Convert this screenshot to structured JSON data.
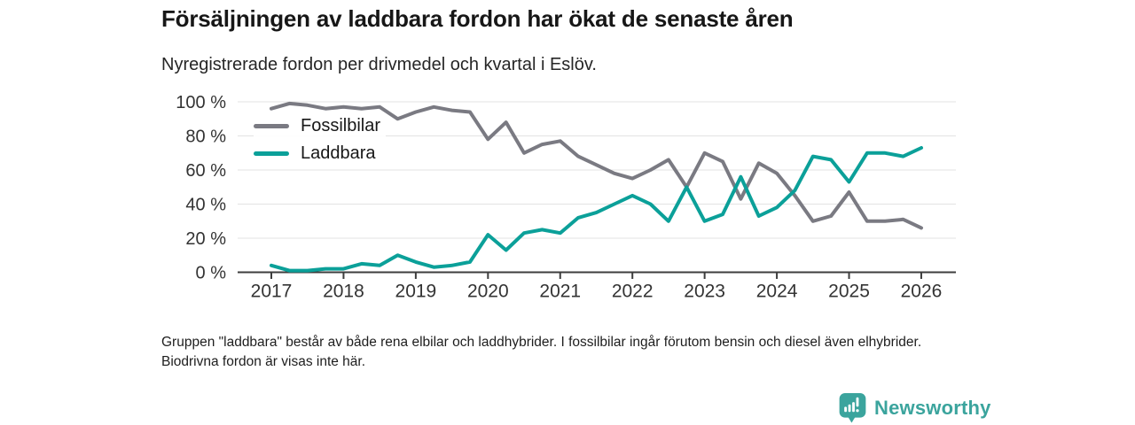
{
  "title": "Försäljningen av laddbara fordon har ökat de senaste åren",
  "subtitle": "Nyregistrerade fordon per drivmedel och kvartal i Eslöv.",
  "footnote": "Gruppen \"laddbara\" består av både rena elbilar och laddhybrider. I fossilbilar ingår förutom bensin och diesel även elhybrider. Biodrivna fordon är visas inte här.",
  "branding": {
    "name": "Newsworthy",
    "logo_icon": "bar-chart-bubble-icon",
    "color": "#3ba49d"
  },
  "chart_data": {
    "type": "line",
    "title": "Nyregistrerade fordon per drivmedel och kvartal i Eslöv",
    "x_unit": "quarter",
    "x": [
      "2017 Q1",
      "2017 Q2",
      "2017 Q3",
      "2017 Q4",
      "2018 Q1",
      "2018 Q2",
      "2018 Q3",
      "2018 Q4",
      "2019 Q1",
      "2019 Q2",
      "2019 Q3",
      "2019 Q4",
      "2020 Q1",
      "2020 Q2",
      "2020 Q3",
      "2020 Q4",
      "2021 Q1",
      "2021 Q2",
      "2021 Q3",
      "2021 Q4",
      "2022 Q1",
      "2022 Q2",
      "2022 Q3",
      "2022 Q4",
      "2023 Q1",
      "2023 Q2",
      "2023 Q3",
      "2023 Q4",
      "2024 Q1",
      "2024 Q2",
      "2024 Q3",
      "2024 Q4",
      "2025 Q1",
      "2025 Q2",
      "2025 Q3",
      "2025 Q4",
      "2026 Q1"
    ],
    "x_tick_labels": [
      "2017",
      "2018",
      "2019",
      "2020",
      "2021",
      "2022",
      "2023",
      "2024",
      "2025",
      "2026"
    ],
    "y_tick_labels": [
      "0 %",
      "20 %",
      "40 %",
      "60 %",
      "80 %",
      "100 %"
    ],
    "ylim": [
      0,
      100
    ],
    "y_unit": "%",
    "grid": "horizontal",
    "legend_position": "top-left-inside",
    "series": [
      {
        "name": "Fossilbilar",
        "color": "#7a7a82",
        "values": [
          96,
          99,
          98,
          96,
          97,
          96,
          97,
          90,
          94,
          97,
          95,
          94,
          78,
          88,
          70,
          75,
          77,
          68,
          63,
          58,
          55,
          60,
          66,
          50,
          70,
          65,
          43,
          64,
          58,
          45,
          30,
          33,
          47,
          30,
          30,
          31,
          26
        ]
      },
      {
        "name": "Laddbara",
        "color": "#0ba099",
        "values": [
          4,
          1,
          1,
          2,
          2,
          5,
          4,
          10,
          6,
          3,
          4,
          6,
          22,
          13,
          23,
          25,
          23,
          32,
          35,
          40,
          45,
          40,
          30,
          50,
          30,
          34,
          56,
          33,
          38,
          48,
          68,
          66,
          53,
          70,
          70,
          68,
          73
        ]
      }
    ]
  }
}
